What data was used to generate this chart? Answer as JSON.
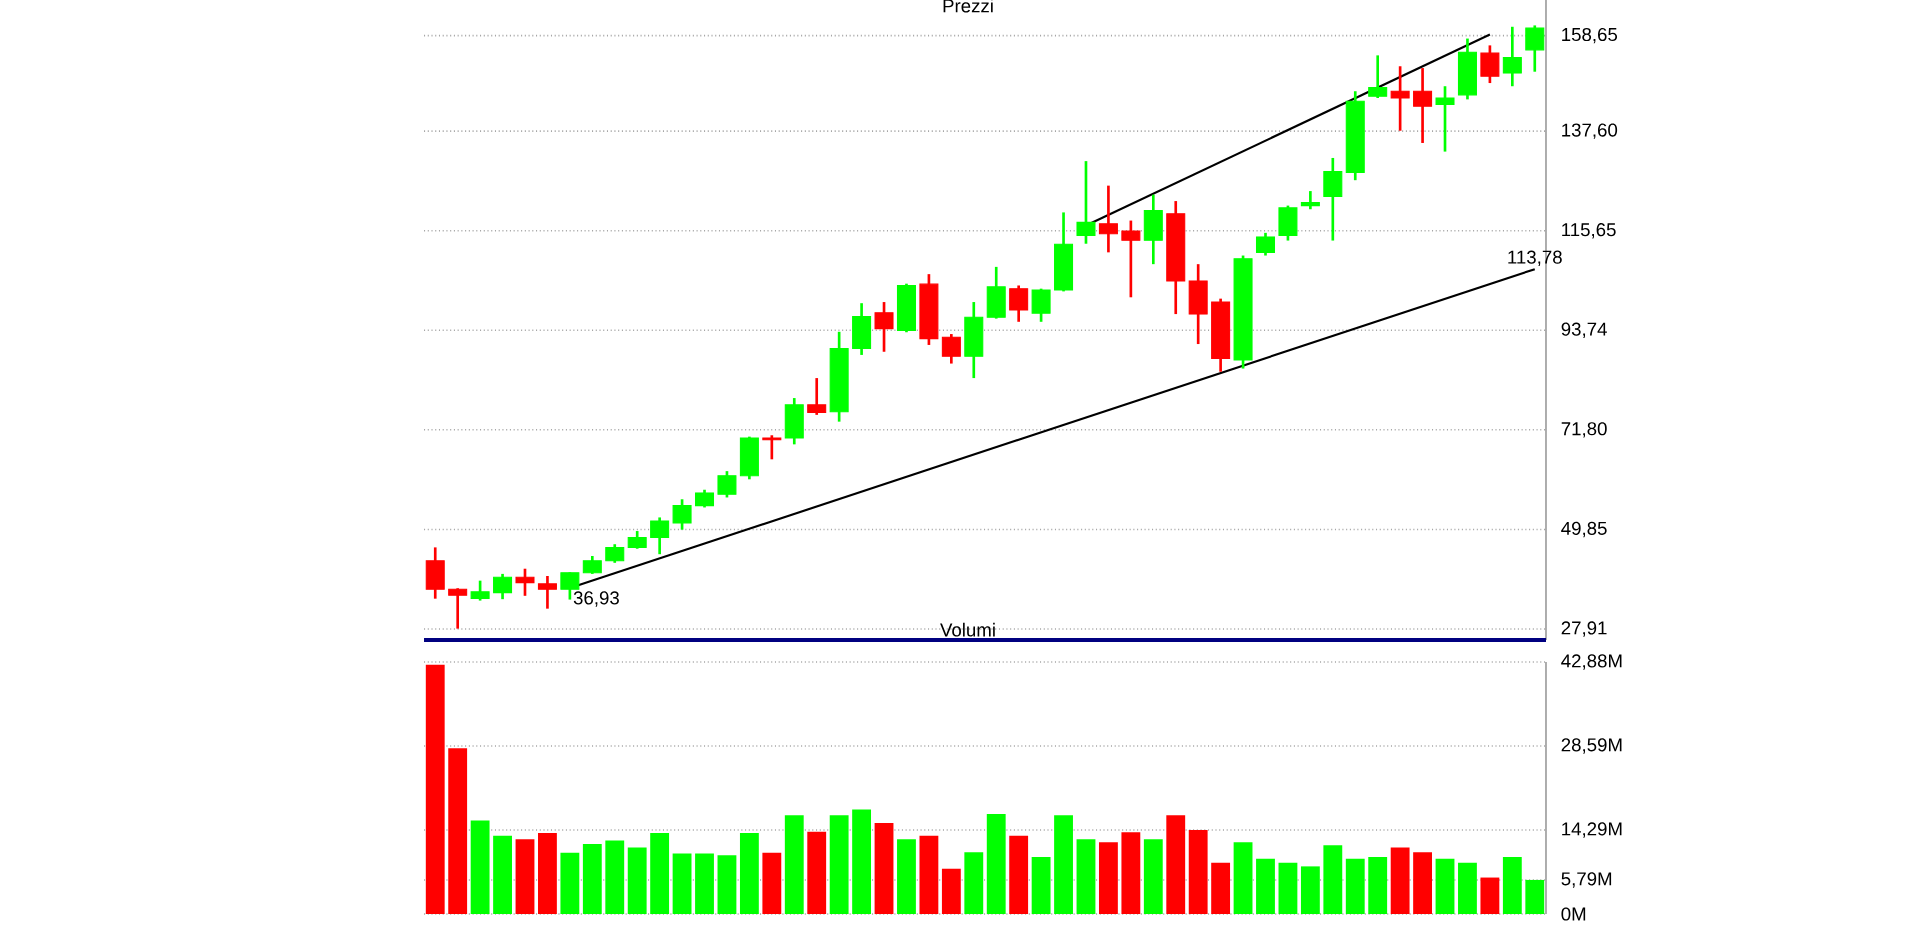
{
  "chart_data": [
    {
      "type": "candlestick",
      "title": "Prezzi",
      "categories": [
        null,
        null,
        null,
        null,
        null,
        null,
        null,
        null,
        null,
        null,
        null,
        null,
        null,
        null,
        null,
        null,
        null,
        null,
        null,
        null,
        null,
        null,
        null,
        null,
        null,
        null,
        null,
        null,
        null,
        null,
        null,
        null,
        null,
        null,
        null,
        null,
        null,
        null,
        null,
        null,
        null,
        null,
        null,
        null,
        null,
        null,
        null,
        null,
        null,
        null
      ],
      "ohlc": [
        [
          42.95,
          45.9,
          34.6,
          36.68
        ],
        [
          36.68,
          36.9,
          28.0,
          35.36
        ],
        [
          34.62,
          38.57,
          34.18,
          36.11
        ],
        [
          35.93,
          40.06,
          34.49,
          39.31
        ],
        [
          39.31,
          41.2,
          35.23,
          38.13
        ],
        [
          37.86,
          39.6,
          32.4,
          36.68
        ],
        [
          36.68,
          40.4,
          34.4,
          40.32
        ],
        [
          40.32,
          44.0,
          40.06,
          42.95
        ],
        [
          42.95,
          46.6,
          42.5,
          45.89
        ],
        [
          45.89,
          49.5,
          45.6,
          48.08
        ],
        [
          48.08,
          52.5,
          44.4,
          51.72
        ],
        [
          51.28,
          56.5,
          49.8,
          55.1
        ],
        [
          55.1,
          58.6,
          54.7,
          57.9
        ],
        [
          57.6,
          62.7,
          56.9,
          61.7
        ],
        [
          61.7,
          70.3,
          60.9,
          70.0
        ],
        [
          70.0,
          70.6,
          65.3,
          69.6
        ],
        [
          70.0,
          78.8,
          68.6,
          77.3
        ],
        [
          77.3,
          83.2,
          75.1,
          75.6
        ],
        [
          75.8,
          93.4,
          73.6,
          89.7
        ],
        [
          89.7,
          99.7,
          88.3,
          96.75
        ],
        [
          97.6,
          99.95,
          89.0,
          94.1
        ],
        [
          93.7,
          104.0,
          93.3,
          103.6
        ],
        [
          103.9,
          106.1,
          90.5,
          91.9
        ],
        [
          92.2,
          92.9,
          86.4,
          88.0
        ],
        [
          88.0,
          99.95,
          83.2,
          96.6
        ],
        [
          96.6,
          107.7,
          96.3,
          103.3
        ],
        [
          102.9,
          103.6,
          95.6,
          98.2
        ],
        [
          97.5,
          102.9,
          95.6,
          102.6
        ],
        [
          102.6,
          119.7,
          102.3,
          112.7
        ],
        [
          114.6,
          131.0,
          112.8,
          117.5
        ],
        [
          117.2,
          125.6,
          110.9,
          115.0
        ],
        [
          115.6,
          117.9,
          101.0,
          113.55
        ],
        [
          113.55,
          123.6,
          108.3,
          120.1
        ],
        [
          119.4,
          122.2,
          97.3,
          104.6
        ],
        [
          104.6,
          108.3,
          90.7,
          97.3
        ],
        [
          99.95,
          100.7,
          84.6,
          87.5
        ],
        [
          87.2,
          110.2,
          85.3,
          109.5
        ],
        [
          110.9,
          115.2,
          110.2,
          114.3
        ],
        [
          114.6,
          121.2,
          113.5,
          120.7
        ],
        [
          121.2,
          124.4,
          120.4,
          121.9
        ],
        [
          123.2,
          131.7,
          113.5,
          128.7
        ],
        [
          128.5,
          146.4,
          126.8,
          144.2
        ],
        [
          145.3,
          154.3,
          144.9,
          147.2
        ],
        [
          146.4,
          151.9,
          137.7,
          144.9
        ],
        [
          146.4,
          151.5,
          135.0,
          143.1
        ],
        [
          143.5,
          147.5,
          133.1,
          144.9
        ],
        [
          145.6,
          158.0,
          144.6,
          155.0
        ],
        [
          154.8,
          156.5,
          148.2,
          149.7
        ],
        [
          150.4,
          160.6,
          147.5,
          153.8
        ],
        [
          155.5,
          160.9,
          150.7,
          160.3
        ]
      ],
      "colors": [
        "#ff0000",
        "#ff0000",
        "#00ff00",
        "#00ff00",
        "#ff0000",
        "#ff0000",
        "#00ff00",
        "#00ff00",
        "#00ff00",
        "#00ff00",
        "#00ff00",
        "#00ff00",
        "#00ff00",
        "#00ff00",
        "#00ff00",
        "#ff0000",
        "#00ff00",
        "#ff0000",
        "#00ff00",
        "#00ff00",
        "#ff0000",
        "#00ff00",
        "#ff0000",
        "#ff0000",
        "#00ff00",
        "#00ff00",
        "#ff0000",
        "#00ff00",
        "#00ff00",
        "#00ff00",
        "#ff0000",
        "#ff0000",
        "#00ff00",
        "#ff0000",
        "#ff0000",
        "#ff0000",
        "#00ff00",
        "#00ff00",
        "#00ff00",
        "#00ff00",
        "#00ff00",
        "#00ff00",
        "#00ff00",
        "#ff0000",
        "#ff0000",
        "#00ff00",
        "#00ff00",
        "#ff0000",
        "#00ff00",
        "#00ff00"
      ],
      "series": [
        {
          "type": "line",
          "color": "#000000",
          "values": [
            null,
            null,
            null,
            null,
            null,
            null,
            36.93,
            null,
            null,
            null,
            null,
            null,
            null,
            null,
            null,
            null,
            null,
            null,
            null,
            null,
            null,
            null,
            null,
            null,
            null,
            null,
            null,
            null,
            null,
            null,
            null,
            null,
            null,
            null,
            null,
            null,
            null,
            null,
            null,
            null,
            null,
            null,
            null,
            null,
            null,
            null,
            null,
            null,
            null,
            107.2
          ]
        },
        {
          "type": "line",
          "color": "#000000",
          "values": [
            null,
            null,
            null,
            null,
            null,
            null,
            null,
            null,
            null,
            null,
            null,
            null,
            null,
            null,
            null,
            null,
            null,
            null,
            null,
            null,
            null,
            null,
            null,
            null,
            null,
            null,
            null,
            null,
            null,
            116.8,
            null,
            null,
            null,
            null,
            null,
            null,
            null,
            null,
            null,
            null,
            null,
            null,
            null,
            null,
            null,
            null,
            null,
            158.9,
            null,
            null
          ]
        }
      ],
      "annotations": [
        "36,93",
        "113,78"
      ],
      "ylim": [
        25.5,
        166.5
      ],
      "yticks": [
        {
          "value": 27.91,
          "label": "27,91"
        },
        {
          "value": 49.85,
          "label": "49,85"
        },
        {
          "value": 71.8,
          "label": "71,80"
        },
        {
          "value": 93.74,
          "label": "93,74"
        },
        {
          "value": 115.65,
          "label": "115,65"
        },
        {
          "value": 137.6,
          "label": "137,60"
        },
        {
          "value": 158.65,
          "label": "158,65"
        }
      ],
      "grid": "y"
    },
    {
      "type": "bar",
      "title": "Volumi",
      "categories": [
        null,
        null,
        null,
        null,
        null,
        null,
        null,
        null,
        null,
        null,
        null,
        null,
        null,
        null,
        null,
        null,
        null,
        null,
        null,
        null,
        null,
        null,
        null,
        null,
        null,
        null,
        null,
        null,
        null,
        null,
        null,
        null,
        null,
        null,
        null,
        null,
        null,
        null,
        null,
        null,
        null,
        null,
        null,
        null,
        null,
        null,
        null,
        null,
        null,
        null
      ],
      "values": [
        42.4,
        28.2,
        15.9,
        13.3,
        12.7,
        13.8,
        10.4,
        11.9,
        12.5,
        11.3,
        13.8,
        10.3,
        10.3,
        10.0,
        13.8,
        10.4,
        16.8,
        14.0,
        16.8,
        17.8,
        15.5,
        12.7,
        13.3,
        7.7,
        10.5,
        17.0,
        13.3,
        9.7,
        16.8,
        12.7,
        12.2,
        13.9,
        12.7,
        16.8,
        14.3,
        8.7,
        12.2,
        9.4,
        8.7,
        8.1,
        11.7,
        9.4,
        9.7,
        11.3,
        10.5,
        9.4,
        8.7,
        6.2,
        9.7,
        5.79
      ],
      "colors": [
        "#ff0000",
        "#ff0000",
        "#00ff00",
        "#00ff00",
        "#ff0000",
        "#ff0000",
        "#00ff00",
        "#00ff00",
        "#00ff00",
        "#00ff00",
        "#00ff00",
        "#00ff00",
        "#00ff00",
        "#00ff00",
        "#00ff00",
        "#ff0000",
        "#00ff00",
        "#ff0000",
        "#00ff00",
        "#00ff00",
        "#ff0000",
        "#00ff00",
        "#ff0000",
        "#ff0000",
        "#00ff00",
        "#00ff00",
        "#ff0000",
        "#00ff00",
        "#00ff00",
        "#00ff00",
        "#ff0000",
        "#ff0000",
        "#00ff00",
        "#ff0000",
        "#ff0000",
        "#ff0000",
        "#00ff00",
        "#00ff00",
        "#00ff00",
        "#00ff00",
        "#00ff00",
        "#00ff00",
        "#00ff00",
        "#ff0000",
        "#ff0000",
        "#00ff00",
        "#00ff00",
        "#ff0000",
        "#00ff00",
        "#00ff00"
      ],
      "ylim": [
        0,
        42.88
      ],
      "yticks": [
        {
          "value": 0,
          "label": "0M"
        },
        {
          "value": 5.79,
          "label": "5,79M"
        },
        {
          "value": 14.29,
          "label": "14,29M"
        },
        {
          "value": 28.59,
          "label": "28,59M"
        },
        {
          "value": 42.88,
          "label": "42,88M"
        }
      ],
      "grid": "y"
    }
  ]
}
